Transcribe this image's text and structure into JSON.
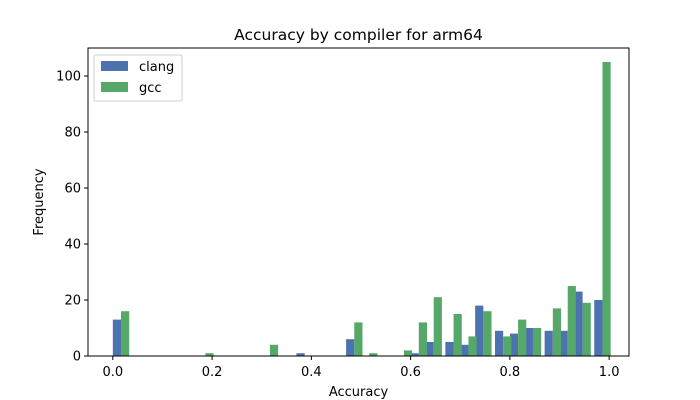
{
  "chart_data": {
    "type": "bar",
    "title": "Accuracy by compiler for arm64",
    "xlabel": "Accuracy",
    "ylabel": "Frequency",
    "xlim": [
      -0.05,
      1.04
    ],
    "ylim": [
      0,
      110
    ],
    "xticks": [
      "0.0",
      "0.2",
      "0.4",
      "0.6",
      "0.8",
      "1.0"
    ],
    "yticks": [
      "0",
      "20",
      "40",
      "60",
      "80",
      "100"
    ],
    "grid": false,
    "legend_position": "top-left",
    "series": [
      {
        "name": "clang",
        "color": "#4c72b0",
        "bins": [
          {
            "x": 0.0,
            "value": 13
          },
          {
            "x": 0.37,
            "value": 1
          },
          {
            "x": 0.47,
            "value": 6
          },
          {
            "x": 0.6,
            "value": 1
          },
          {
            "x": 0.63,
            "value": 5
          },
          {
            "x": 0.67,
            "value": 5
          },
          {
            "x": 0.7,
            "value": 4
          },
          {
            "x": 0.73,
            "value": 18
          },
          {
            "x": 0.77,
            "value": 9
          },
          {
            "x": 0.8,
            "value": 8
          },
          {
            "x": 0.83,
            "value": 10
          },
          {
            "x": 0.87,
            "value": 9
          },
          {
            "x": 0.9,
            "value": 9
          },
          {
            "x": 0.93,
            "value": 23
          },
          {
            "x": 0.97,
            "value": 20
          }
        ]
      },
      {
        "name": "gcc",
        "color": "#55a868",
        "bins": [
          {
            "x": 0.0,
            "value": 16
          },
          {
            "x": 0.17,
            "value": 1
          },
          {
            "x": 0.3,
            "value": 4
          },
          {
            "x": 0.47,
            "value": 12
          },
          {
            "x": 0.5,
            "value": 1
          },
          {
            "x": 0.57,
            "value": 2
          },
          {
            "x": 0.6,
            "value": 12
          },
          {
            "x": 0.63,
            "value": 21
          },
          {
            "x": 0.67,
            "value": 15
          },
          {
            "x": 0.7,
            "value": 7
          },
          {
            "x": 0.73,
            "value": 16
          },
          {
            "x": 0.77,
            "value": 7
          },
          {
            "x": 0.8,
            "value": 13
          },
          {
            "x": 0.83,
            "value": 10
          },
          {
            "x": 0.87,
            "value": 17
          },
          {
            "x": 0.9,
            "value": 25
          },
          {
            "x": 0.93,
            "value": 19
          },
          {
            "x": 0.97,
            "value": 105
          }
        ]
      }
    ]
  }
}
